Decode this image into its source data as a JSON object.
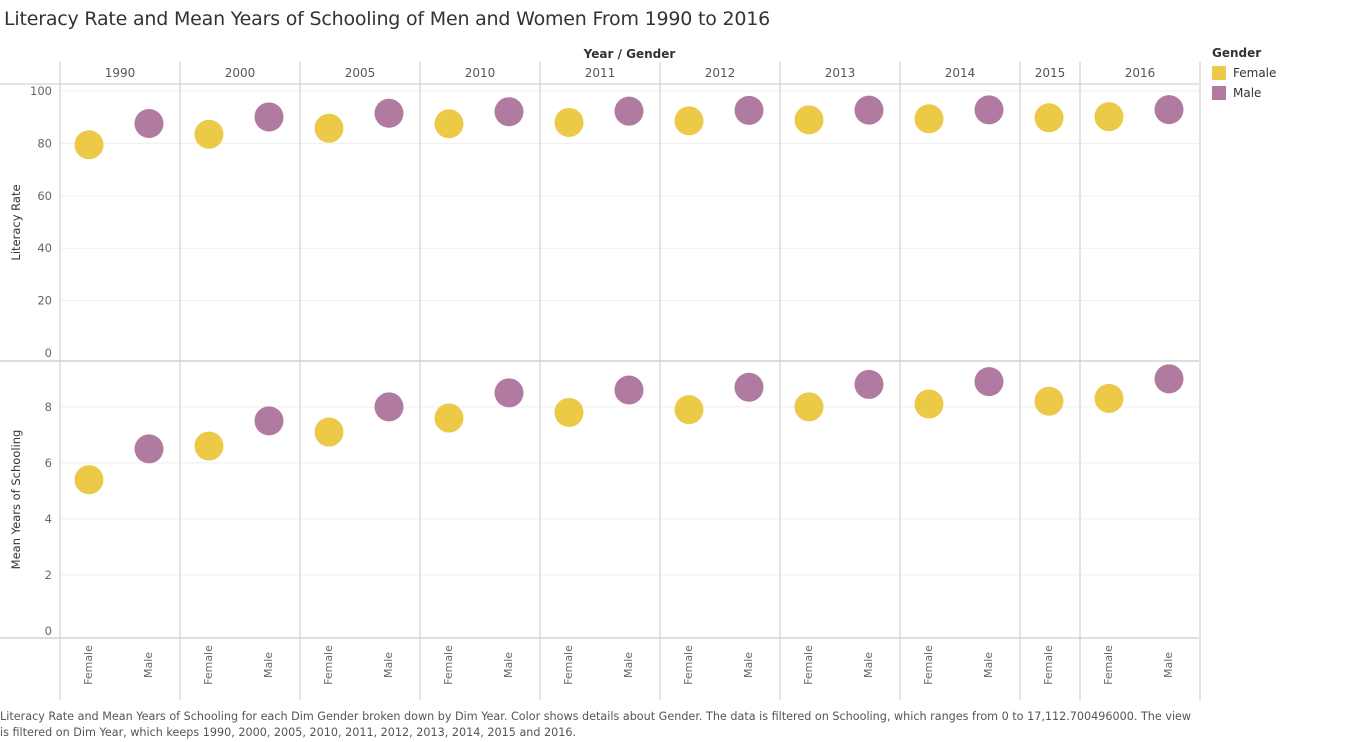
{
  "chart_data": {
    "type": "scatter",
    "title": "Literacy Rate and Mean Years of Schooling of Men and Women From 1990 to 2016",
    "column_header": "Year / Gender",
    "years": [
      "1990",
      "2000",
      "2005",
      "2010",
      "2011",
      "2012",
      "2013",
      "2014",
      "2015",
      "2016"
    ],
    "genders": [
      "Female",
      "Male"
    ],
    "year_genders": [
      [
        "Female",
        "Male"
      ],
      [
        "Female",
        "Male"
      ],
      [
        "Female",
        "Male"
      ],
      [
        "Female",
        "Male"
      ],
      [
        "Female",
        "Male"
      ],
      [
        "Female",
        "Male"
      ],
      [
        "Female",
        "Male"
      ],
      [
        "Female",
        "Male"
      ],
      [
        "Female"
      ],
      [
        "Female",
        "Male"
      ]
    ],
    "rows": [
      {
        "ylabel": "Literacy Rate",
        "ylim": [
          0,
          100
        ],
        "ticks": [
          0,
          20,
          40,
          60,
          80,
          100
        ],
        "values": {
          "Female": [
            79.5,
            83.5,
            85.8,
            87.5,
            88.0,
            88.6,
            89.0,
            89.4,
            89.8,
            90.2
          ],
          "Male": [
            87.6,
            90.1,
            91.5,
            92.1,
            92.3,
            92.6,
            92.7,
            92.8,
            null,
            92.9
          ]
        }
      },
      {
        "ylabel": "Mean Years of Schooling",
        "ylim": [
          0,
          9.6
        ],
        "ticks": [
          0,
          2,
          4,
          6,
          8
        ],
        "values": {
          "Female": [
            5.4,
            6.6,
            7.1,
            7.6,
            7.8,
            7.9,
            8.0,
            8.1,
            8.2,
            8.3
          ],
          "Male": [
            6.5,
            7.5,
            8.0,
            8.5,
            8.6,
            8.7,
            8.8,
            8.9,
            null,
            9.0
          ]
        }
      }
    ],
    "colors": {
      "Female": "#EDC948",
      "Male": "#B07AA1"
    },
    "legend": {
      "title": "Gender",
      "position": "right"
    },
    "grid": true
  },
  "caption": "Literacy Rate and Mean Years of Schooling for each Dim Gender broken down by Dim Year.  Color shows details about Gender. The data is filtered on Schooling, which ranges from 0 to 17,112.700496000. The view is filtered on Dim Year, which keeps 1990, 2000, 2005, 2010, 2011, 2012, 2013, 2014, 2015 and 2016."
}
